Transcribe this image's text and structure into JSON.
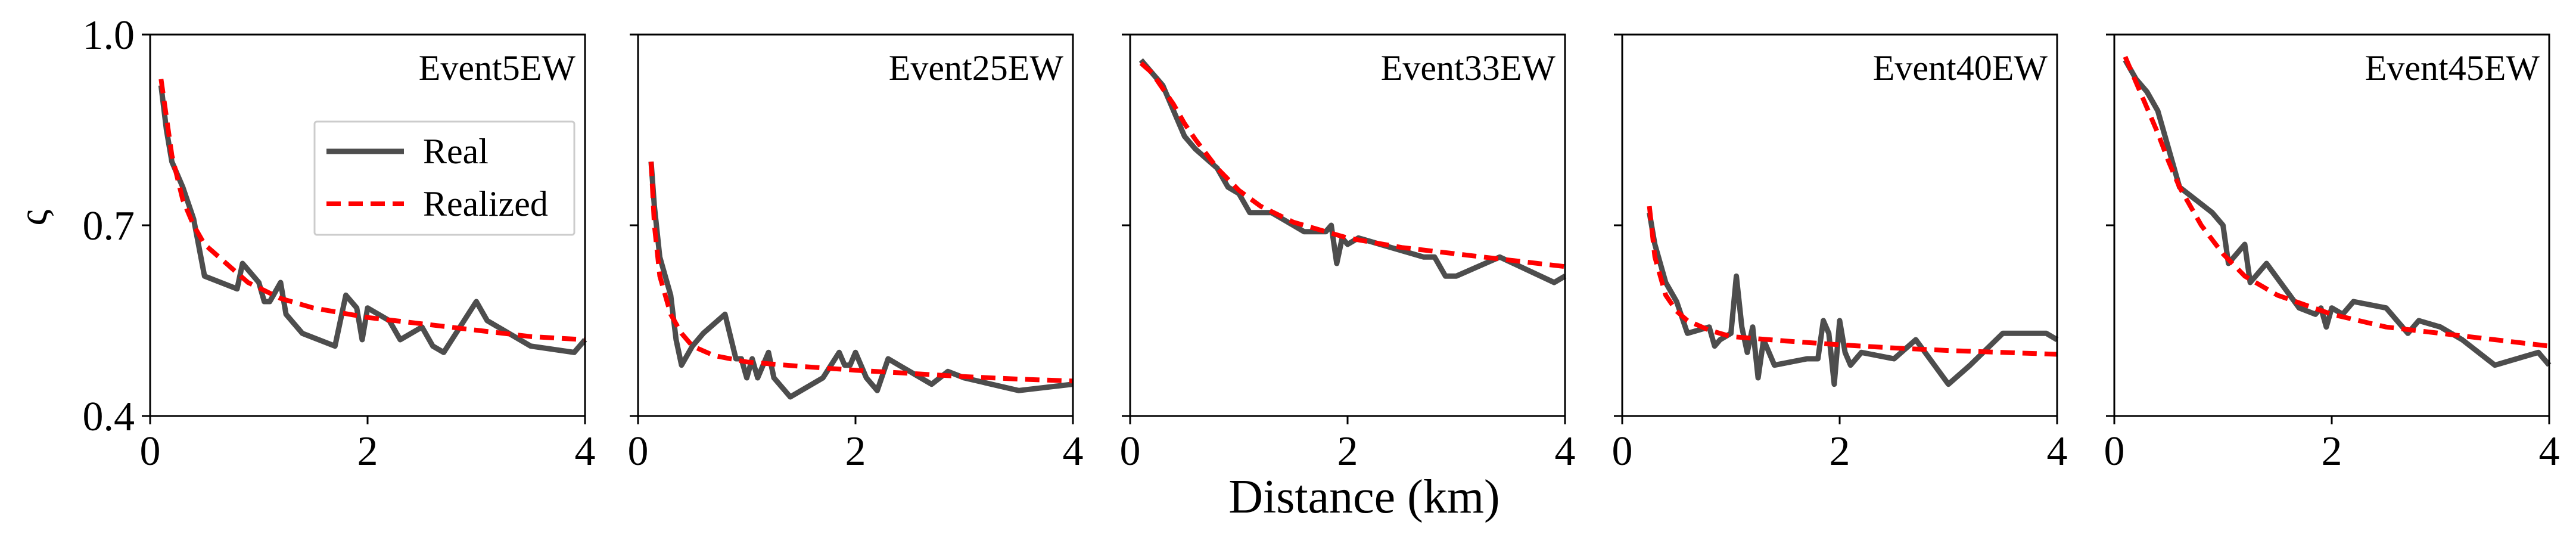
{
  "figure": {
    "xlabel": "Distance (km)",
    "ylabel": "ς",
    "colors": {
      "real": "#4d4d4d",
      "realized": "#ff0000",
      "axis": "#000000"
    }
  },
  "chart_data": [
    {
      "type": "line",
      "title": "Event5EW",
      "xlabel": "Distance (km)",
      "ylabel": "ς",
      "xlim": [
        0,
        4
      ],
      "ylim": [
        0.4,
        1.0
      ],
      "xticks": [
        "0",
        "2",
        "4"
      ],
      "yticks": [
        "0.4",
        "0.7",
        "1.0"
      ],
      "legend": {
        "placement": "upper-center",
        "entries": [
          "Real",
          "Realized"
        ]
      },
      "series": [
        {
          "name": "Real",
          "style": "solid",
          "x": [
            0.1,
            0.15,
            0.2,
            0.3,
            0.4,
            0.5,
            0.8,
            0.85,
            0.9,
            1.0,
            1.05,
            1.1,
            1.2,
            1.25,
            1.4,
            1.7,
            1.8,
            1.9,
            1.95,
            2.0,
            2.2,
            2.3,
            2.5,
            2.6,
            2.7,
            3.0,
            3.1,
            3.5,
            3.9,
            4.0
          ],
          "y": [
            0.92,
            0.85,
            0.8,
            0.76,
            0.71,
            0.62,
            0.6,
            0.64,
            0.63,
            0.61,
            0.58,
            0.58,
            0.61,
            0.56,
            0.53,
            0.51,
            0.59,
            0.57,
            0.52,
            0.57,
            0.55,
            0.52,
            0.54,
            0.51,
            0.5,
            0.58,
            0.55,
            0.51,
            0.5,
            0.52
          ]
        },
        {
          "name": "Realized",
          "style": "dashed",
          "x": [
            0.1,
            0.2,
            0.3,
            0.4,
            0.5,
            0.7,
            0.9,
            1.2,
            1.5,
            2.0,
            2.5,
            3.0,
            3.5,
            4.0
          ],
          "y": [
            0.93,
            0.81,
            0.74,
            0.7,
            0.67,
            0.64,
            0.61,
            0.585,
            0.57,
            0.555,
            0.545,
            0.535,
            0.525,
            0.52
          ]
        }
      ]
    },
    {
      "type": "line",
      "title": "Event25EW",
      "xlabel": "Distance (km)",
      "ylabel": "ς",
      "xlim": [
        0,
        4
      ],
      "ylim": [
        0.4,
        1.0
      ],
      "xticks": [
        "0",
        "2",
        "4"
      ],
      "yticks": [
        "0.4",
        "0.7",
        "1.0"
      ],
      "series": [
        {
          "name": "Real",
          "style": "solid",
          "x": [
            0.12,
            0.15,
            0.2,
            0.3,
            0.35,
            0.4,
            0.5,
            0.6,
            0.8,
            0.9,
            0.95,
            1.0,
            1.05,
            1.1,
            1.2,
            1.25,
            1.4,
            1.7,
            1.85,
            1.9,
            1.95,
            2.0,
            2.1,
            2.2,
            2.3,
            2.4,
            2.7,
            2.85,
            3.0,
            3.5,
            4.0
          ],
          "y": [
            0.8,
            0.73,
            0.65,
            0.59,
            0.52,
            0.48,
            0.51,
            0.53,
            0.56,
            0.49,
            0.49,
            0.46,
            0.49,
            0.46,
            0.5,
            0.46,
            0.43,
            0.46,
            0.5,
            0.48,
            0.48,
            0.5,
            0.46,
            0.44,
            0.49,
            0.48,
            0.45,
            0.47,
            0.46,
            0.44,
            0.45
          ]
        },
        {
          "name": "Realized",
          "style": "dashed",
          "x": [
            0.12,
            0.15,
            0.2,
            0.3,
            0.4,
            0.5,
            0.7,
            1.0,
            1.5,
            2.0,
            2.5,
            3.0,
            3.5,
            4.0
          ],
          "y": [
            0.8,
            0.7,
            0.62,
            0.56,
            0.53,
            0.51,
            0.495,
            0.485,
            0.478,
            0.472,
            0.467,
            0.462,
            0.458,
            0.455
          ]
        }
      ]
    },
    {
      "type": "line",
      "title": "Event33EW",
      "xlabel": "Distance (km)",
      "ylabel": "ς",
      "xlim": [
        0,
        4
      ],
      "ylim": [
        0.4,
        1.0
      ],
      "xticks": [
        "0",
        "2",
        "4"
      ],
      "yticks": [
        "0.4",
        "0.7",
        "1.0"
      ],
      "series": [
        {
          "name": "Real",
          "style": "solid",
          "x": [
            0.1,
            0.2,
            0.3,
            0.4,
            0.5,
            0.6,
            0.8,
            0.9,
            1.0,
            1.1,
            1.2,
            1.3,
            1.5,
            1.6,
            1.8,
            1.85,
            1.9,
            1.95,
            2.0,
            2.1,
            2.3,
            2.5,
            2.7,
            2.8,
            2.9,
            3.0,
            3.4,
            3.9,
            4.0
          ],
          "y": [
            0.96,
            0.94,
            0.92,
            0.88,
            0.84,
            0.82,
            0.79,
            0.76,
            0.75,
            0.72,
            0.72,
            0.72,
            0.7,
            0.69,
            0.69,
            0.7,
            0.64,
            0.68,
            0.67,
            0.68,
            0.67,
            0.66,
            0.65,
            0.65,
            0.62,
            0.62,
            0.65,
            0.61,
            0.62
          ]
        },
        {
          "name": "Realized",
          "style": "dashed",
          "x": [
            0.1,
            0.2,
            0.3,
            0.4,
            0.5,
            0.6,
            0.8,
            1.0,
            1.2,
            1.5,
            2.0,
            2.5,
            3.0,
            3.5,
            4.0
          ],
          "y": [
            0.955,
            0.94,
            0.915,
            0.89,
            0.86,
            0.835,
            0.79,
            0.755,
            0.73,
            0.705,
            0.68,
            0.665,
            0.655,
            0.645,
            0.635
          ]
        }
      ]
    },
    {
      "type": "line",
      "title": "Event40EW",
      "xlabel": "Distance (km)",
      "ylabel": "ς",
      "xlim": [
        0,
        4
      ],
      "ylim": [
        0.4,
        1.0
      ],
      "xticks": [
        "0",
        "2",
        "4"
      ],
      "yticks": [
        "0.4",
        "0.7",
        "1.0"
      ],
      "series": [
        {
          "name": "Real",
          "style": "solid",
          "x": [
            0.25,
            0.3,
            0.4,
            0.5,
            0.6,
            0.8,
            0.85,
            0.9,
            1.0,
            1.05,
            1.1,
            1.15,
            1.2,
            1.25,
            1.3,
            1.4,
            1.7,
            1.8,
            1.85,
            1.9,
            1.95,
            2.0,
            2.05,
            2.1,
            2.2,
            2.5,
            2.7,
            3.0,
            3.2,
            3.5,
            3.9,
            4.0
          ],
          "y": [
            0.72,
            0.67,
            0.61,
            0.58,
            0.53,
            0.54,
            0.51,
            0.52,
            0.53,
            0.62,
            0.54,
            0.5,
            0.54,
            0.46,
            0.52,
            0.48,
            0.49,
            0.49,
            0.55,
            0.53,
            0.45,
            0.55,
            0.5,
            0.48,
            0.5,
            0.49,
            0.52,
            0.45,
            0.48,
            0.53,
            0.53,
            0.52
          ]
        },
        {
          "name": "Realized",
          "style": "dashed",
          "x": [
            0.25,
            0.3,
            0.4,
            0.5,
            0.6,
            0.8,
            1.0,
            1.5,
            2.0,
            2.5,
            3.0,
            3.5,
            4.0
          ],
          "y": [
            0.73,
            0.65,
            0.59,
            0.565,
            0.55,
            0.535,
            0.525,
            0.518,
            0.512,
            0.507,
            0.503,
            0.5,
            0.497
          ]
        }
      ]
    },
    {
      "type": "line",
      "title": "Event45EW",
      "xlabel": "Distance (km)",
      "ylabel": "ς",
      "xlim": [
        0,
        4
      ],
      "ylim": [
        0.4,
        1.0
      ],
      "xticks": [
        "0",
        "2",
        "4"
      ],
      "yticks": [
        "0.4",
        "0.7",
        "1.0"
      ],
      "series": [
        {
          "name": "Real",
          "style": "solid",
          "x": [
            0.1,
            0.2,
            0.3,
            0.4,
            0.5,
            0.6,
            0.9,
            1.0,
            1.05,
            1.1,
            1.2,
            1.25,
            1.4,
            1.7,
            1.85,
            1.9,
            1.95,
            2.0,
            2.1,
            2.2,
            2.5,
            2.7,
            2.8,
            3.0,
            3.2,
            3.5,
            3.9,
            4.0
          ],
          "y": [
            0.96,
            0.93,
            0.91,
            0.88,
            0.82,
            0.76,
            0.72,
            0.7,
            0.64,
            0.65,
            0.67,
            0.61,
            0.64,
            0.57,
            0.56,
            0.57,
            0.54,
            0.57,
            0.56,
            0.58,
            0.57,
            0.53,
            0.55,
            0.54,
            0.52,
            0.48,
            0.5,
            0.48
          ]
        },
        {
          "name": "Realized",
          "style": "dashed",
          "x": [
            0.1,
            0.2,
            0.3,
            0.4,
            0.5,
            0.6,
            0.8,
            1.0,
            1.2,
            1.5,
            2.0,
            2.5,
            3.0,
            3.5,
            4.0
          ],
          "y": [
            0.965,
            0.925,
            0.885,
            0.845,
            0.8,
            0.76,
            0.7,
            0.655,
            0.62,
            0.59,
            0.56,
            0.54,
            0.53,
            0.52,
            0.51
          ]
        }
      ]
    }
  ]
}
